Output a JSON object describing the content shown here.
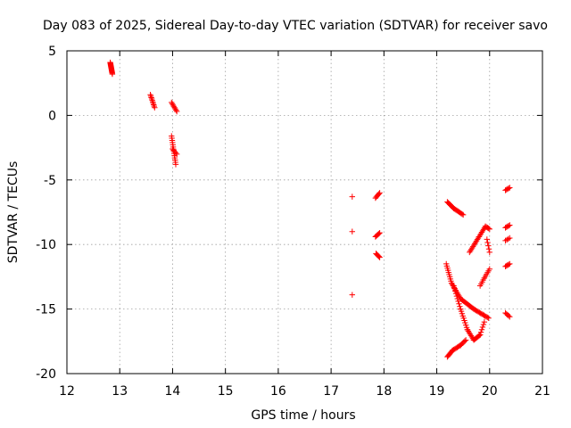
{
  "chart_data": {
    "type": "scatter",
    "title": "Day 083 of 2025, Sidereal Day-to-day VTEC variation (SDTVAR) for receiver savo",
    "xlabel": "GPS time / hours",
    "ylabel": "SDTVAR / TECUs",
    "xlim": [
      12,
      21
    ],
    "ylim": [
      -20,
      5
    ],
    "xticks": [
      "12",
      "13",
      "14",
      "15",
      "16",
      "17",
      "18",
      "19",
      "20",
      "21"
    ],
    "yticks": [
      "5",
      "0",
      "-5",
      "-10",
      "-15",
      "-20"
    ],
    "grid": true,
    "marker": "+",
    "color": "#ff0000",
    "series": [
      {
        "name": "group-12.8",
        "segments": [
          {
            "x0": 12.82,
            "y0": 4.1,
            "x1": 12.86,
            "y1": 3.2,
            "n": 14
          }
        ]
      },
      {
        "name": "group-13.6",
        "segments": [
          {
            "x0": 13.58,
            "y0": 1.6,
            "x1": 13.66,
            "y1": 0.6,
            "n": 10
          }
        ]
      },
      {
        "name": "group-14.0",
        "segments": [
          {
            "x0": 13.98,
            "y0": 1.0,
            "x1": 14.08,
            "y1": 0.3,
            "n": 8
          },
          {
            "x0": 13.98,
            "y0": -1.6,
            "x1": 14.06,
            "y1": -3.8,
            "n": 14
          },
          {
            "x0": 14.0,
            "y0": -2.6,
            "x1": 14.08,
            "y1": -3.0,
            "n": 5
          }
        ]
      },
      {
        "name": "group-17.4",
        "points": [
          [
            17.4,
            -6.3
          ],
          [
            17.4,
            -9.0
          ],
          [
            17.4,
            -13.9
          ]
        ]
      },
      {
        "name": "group-17.9",
        "segments": [
          {
            "x0": 17.84,
            "y0": -6.4,
            "x1": 17.92,
            "y1": -6.0,
            "n": 6
          },
          {
            "x0": 17.84,
            "y0": -9.4,
            "x1": 17.92,
            "y1": -9.1,
            "n": 6
          },
          {
            "x0": 17.85,
            "y0": -10.7,
            "x1": 17.92,
            "y1": -11.0,
            "n": 6
          }
        ]
      },
      {
        "name": "group-19.2-upper",
        "segments": [
          {
            "x0": 19.2,
            "y0": -6.7,
            "x1": 19.32,
            "y1": -7.2,
            "n": 8
          },
          {
            "x0": 19.32,
            "y0": -7.2,
            "x1": 19.5,
            "y1": -7.7,
            "n": 10
          }
        ]
      },
      {
        "name": "group-19.2-diagonal",
        "segments": [
          {
            "x0": 19.18,
            "y0": -11.5,
            "x1": 19.28,
            "y1": -13.0,
            "n": 10
          },
          {
            "x0": 19.28,
            "y0": -13.0,
            "x1": 19.45,
            "y1": -14.2,
            "n": 12
          },
          {
            "x0": 19.45,
            "y0": -14.2,
            "x1": 19.7,
            "y1": -15.0,
            "n": 14
          },
          {
            "x0": 19.7,
            "y0": -15.0,
            "x1": 19.98,
            "y1": -15.7,
            "n": 14
          }
        ]
      },
      {
        "name": "group-19.2-bottom",
        "segments": [
          {
            "x0": 19.2,
            "y0": -18.7,
            "x1": 19.3,
            "y1": -18.2,
            "n": 8
          },
          {
            "x0": 19.3,
            "y0": -18.2,
            "x1": 19.45,
            "y1": -17.8,
            "n": 8
          },
          {
            "x0": 19.45,
            "y0": -17.8,
            "x1": 19.55,
            "y1": -17.4,
            "n": 6
          }
        ]
      },
      {
        "name": "group-19.3-arc",
        "segments": [
          {
            "x0": 19.32,
            "y0": -13.2,
            "x1": 19.45,
            "y1": -15.0,
            "n": 10
          },
          {
            "x0": 19.45,
            "y0": -15.0,
            "x1": 19.58,
            "y1": -16.6,
            "n": 10
          },
          {
            "x0": 19.58,
            "y0": -16.6,
            "x1": 19.7,
            "y1": -17.4,
            "n": 8
          },
          {
            "x0": 19.7,
            "y0": -17.4,
            "x1": 19.82,
            "y1": -17.0,
            "n": 8
          },
          {
            "x0": 19.82,
            "y0": -17.0,
            "x1": 19.9,
            "y1": -16.0,
            "n": 6
          }
        ]
      },
      {
        "name": "group-19.6-rise",
        "segments": [
          {
            "x0": 19.62,
            "y0": -10.6,
            "x1": 19.8,
            "y1": -9.4,
            "n": 12
          },
          {
            "x0": 19.8,
            "y0": -9.4,
            "x1": 19.92,
            "y1": -8.6,
            "n": 8
          },
          {
            "x0": 19.92,
            "y0": -8.6,
            "x1": 20.0,
            "y1": -8.8,
            "n": 5
          },
          {
            "x0": 19.95,
            "y0": -9.6,
            "x1": 20.0,
            "y1": -10.6,
            "n": 5
          }
        ]
      },
      {
        "name": "group-19.8-mid",
        "segments": [
          {
            "x0": 19.82,
            "y0": -13.2,
            "x1": 19.9,
            "y1": -12.6,
            "n": 5
          },
          {
            "x0": 19.9,
            "y0": -12.6,
            "x1": 20.0,
            "y1": -11.9,
            "n": 6
          }
        ]
      },
      {
        "name": "group-20.35",
        "segments": [
          {
            "x0": 20.3,
            "y0": -5.8,
            "x1": 20.38,
            "y1": -5.6,
            "n": 5
          },
          {
            "x0": 20.3,
            "y0": -8.7,
            "x1": 20.38,
            "y1": -8.5,
            "n": 5
          },
          {
            "x0": 20.3,
            "y0": -9.7,
            "x1": 20.38,
            "y1": -9.5,
            "n": 4
          },
          {
            "x0": 20.3,
            "y0": -11.7,
            "x1": 20.38,
            "y1": -11.5,
            "n": 5
          },
          {
            "x0": 20.3,
            "y0": -15.3,
            "x1": 20.38,
            "y1": -15.6,
            "n": 5
          }
        ]
      }
    ]
  }
}
